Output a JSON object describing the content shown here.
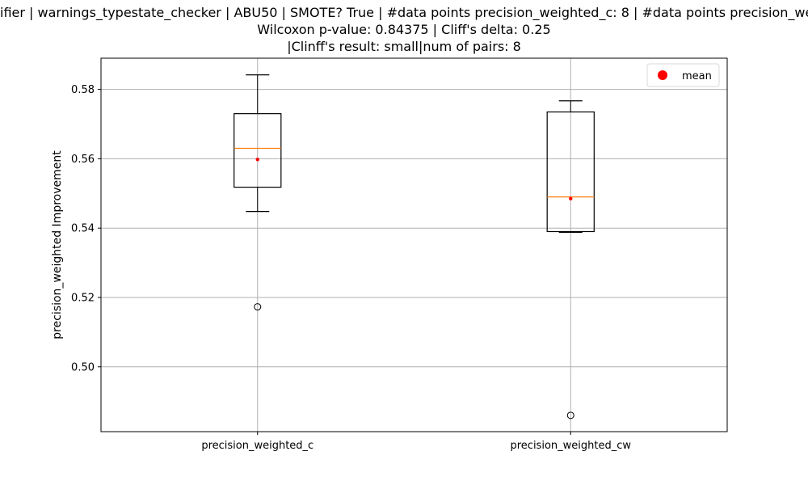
{
  "chart_data": {
    "type": "box",
    "title_lines": [
      "ifier | warnings_typestate_checker | ABU50 | SMOTE? True | #data points precision_weighted_c: 8 | #data points precision_weighted_cw: 8",
      "Wilcoxon p-value: 0.84375 | Cliff's delta: 0.25",
      "|Clinff's result: small|num of pairs: 8"
    ],
    "xlabel": "",
    "ylabel": "precision_weighted Improvement",
    "categories": [
      "precision_weighted_c",
      "precision_weighted_cw"
    ],
    "yticks": [
      0.5,
      0.52,
      0.54,
      0.56,
      0.58
    ],
    "ytick_labels": [
      "0.50",
      "0.52",
      "0.54",
      "0.56",
      "0.58"
    ],
    "ylim": [
      0.4813,
      0.589
    ],
    "grid": true,
    "legend": {
      "entries": [
        "mean"
      ],
      "placement": "top-right"
    },
    "colors": {
      "box": "#000000",
      "median": "#ff7f0e",
      "mean": "#ff0000",
      "grid": "#b0b0b0"
    },
    "boxes": [
      {
        "category": "precision_weighted_c",
        "whisker_low": 0.5448,
        "q1": 0.5518,
        "median": 0.563,
        "q3": 0.573,
        "whisker_high": 0.5842,
        "mean": 0.5598,
        "outliers": [
          0.5173
        ]
      },
      {
        "category": "precision_weighted_cw",
        "whisker_low": 0.5388,
        "q1": 0.539,
        "median": 0.549,
        "q3": 0.5735,
        "whisker_high": 0.5767,
        "mean": 0.5485,
        "outliers": [
          0.486
        ]
      }
    ]
  }
}
